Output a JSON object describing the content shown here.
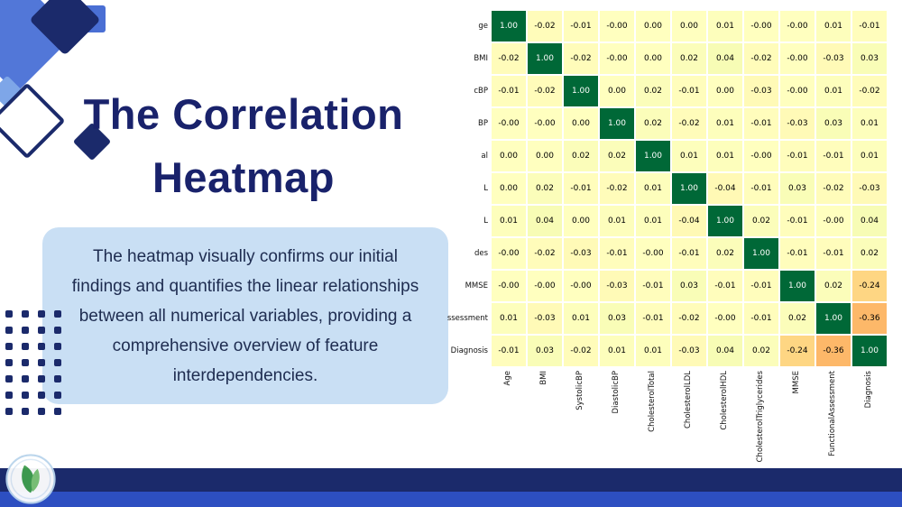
{
  "slide": {
    "title_lines": [
      "The Correlation",
      "Heatmap"
    ],
    "body_lines": [
      "The heatmap visually confirms our initial",
      "findings and quantifies the linear relationships",
      "between all numerical variables, providing a",
      "comprehensive overview of feature",
      "interdependencies."
    ]
  },
  "colors": {
    "navy": "#1b2a6b",
    "royal_blue": "#2d4fc1",
    "cornflower": "#5277d8",
    "mid_blue": "#4a6fd4",
    "light_blue": "#7ea6e8",
    "text_box_bg": "#c9dff4",
    "title_text": "#19226b",
    "body_text": "#1e2c50",
    "logo_green": "#3f9e4e",
    "heatmap_diag_green": "#006837",
    "heatmap_orange": "#fdae61"
  },
  "chart_data": {
    "type": "heatmap",
    "title": "",
    "colormap": "RdYlGn",
    "vmin": -1,
    "vmax": 1,
    "grid": false,
    "labels": [
      "Age",
      "BMI",
      "SystolicBP",
      "DiastolicBP",
      "CholesterolTotal",
      "CholesterolLDL",
      "CholesterolHDL",
      "CholesterolTriglycerides",
      "MMSE",
      "FunctionalAssessment",
      "Diagnosis"
    ],
    "ylabels_visible": [
      "ge",
      "BMI",
      "cBP",
      "BP",
      "al",
      "L",
      "L",
      "des",
      "MMSE",
      "ssessment",
      "Diagnosis"
    ],
    "matrix": [
      [
        "1.00",
        "-0.02",
        "-0.01",
        "-0.00",
        "0.00",
        "0.00",
        "0.01",
        "-0.00",
        "-0.00",
        "0.01",
        "-0.01"
      ],
      [
        "-0.02",
        "1.00",
        "-0.02",
        "-0.00",
        "0.00",
        "0.02",
        "0.04",
        "-0.02",
        "-0.00",
        "-0.03",
        "0.03"
      ],
      [
        "-0.01",
        "-0.02",
        "1.00",
        "0.00",
        "0.02",
        "-0.01",
        "0.00",
        "-0.03",
        "-0.00",
        "0.01",
        "-0.02"
      ],
      [
        "-0.00",
        "-0.00",
        "0.00",
        "1.00",
        "0.02",
        "-0.02",
        "0.01",
        "-0.01",
        "-0.03",
        "0.03",
        "0.01"
      ],
      [
        "0.00",
        "0.00",
        "0.02",
        "0.02",
        "1.00",
        "0.01",
        "0.01",
        "-0.00",
        "-0.01",
        "-0.01",
        "0.01"
      ],
      [
        "0.00",
        "0.02",
        "-0.01",
        "-0.02",
        "0.01",
        "1.00",
        "-0.04",
        "-0.01",
        "0.03",
        "-0.02",
        "-0.03"
      ],
      [
        "0.01",
        "0.04",
        "0.00",
        "0.01",
        "0.01",
        "-0.04",
        "1.00",
        "0.02",
        "-0.01",
        "-0.00",
        "0.04"
      ],
      [
        "-0.00",
        "-0.02",
        "-0.03",
        "-0.01",
        "-0.00",
        "-0.01",
        "0.02",
        "1.00",
        "-0.01",
        "-0.01",
        "0.02"
      ],
      [
        "-0.00",
        "-0.00",
        "-0.00",
        "-0.03",
        "-0.01",
        "0.03",
        "-0.01",
        "-0.01",
        "1.00",
        "0.02",
        "-0.24"
      ],
      [
        "0.01",
        "-0.03",
        "0.01",
        "0.03",
        "-0.01",
        "-0.02",
        "-0.00",
        "-0.01",
        "0.02",
        "1.00",
        "-0.36"
      ],
      [
        "-0.01",
        "0.03",
        "-0.02",
        "0.01",
        "0.01",
        "-0.03",
        "0.04",
        "0.02",
        "-0.24",
        "-0.36",
        "1.00"
      ]
    ]
  }
}
